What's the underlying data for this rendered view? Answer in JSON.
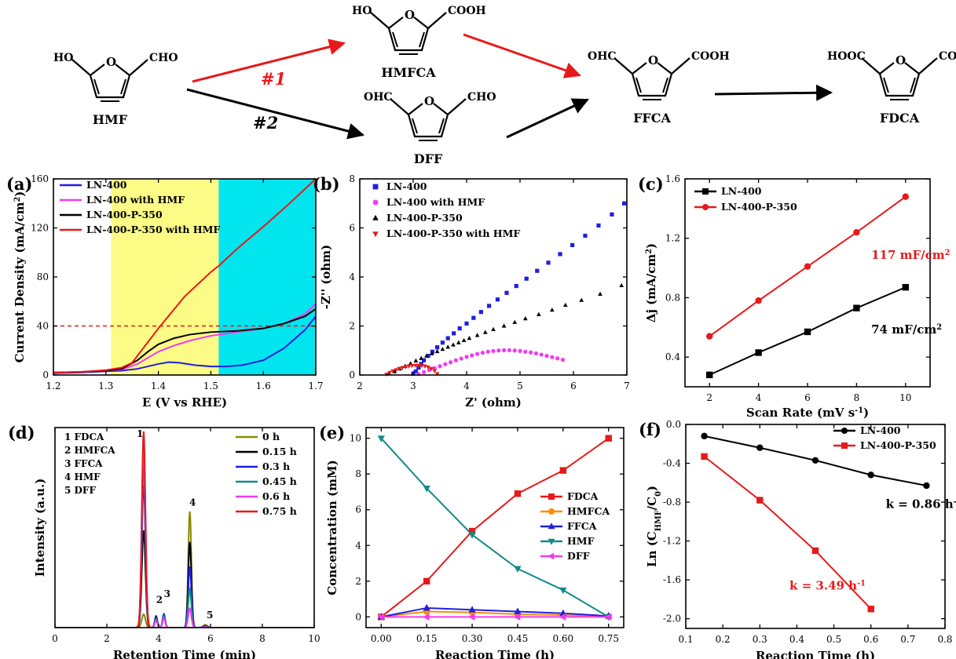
{
  "scheme": {
    "molecules": {
      "hmf": {
        "name": "HMF",
        "left": "HO",
        "right": "CHO"
      },
      "hmfca": {
        "name": "HMFCA",
        "left": "HO",
        "right": "COOH"
      },
      "dff": {
        "name": "DFF",
        "left": "OHC",
        "right": "CHO"
      },
      "ffca": {
        "name": "FFCA",
        "left": "OHC",
        "right": "COOH"
      },
      "fdca": {
        "name": "FDCA",
        "left": "HOOC",
        "right": "COOH"
      }
    },
    "ring_atom": "O",
    "path1_label": "#1",
    "path2_label": "#2",
    "colors": {
      "path1": "#e8191a",
      "path2": "#000000"
    }
  },
  "chart_data": [
    {
      "id": "a",
      "panel_label": "(a)",
      "type": "line",
      "xlabel": "E (V vs RHE)",
      "ylabel": "Current Density (mA/cm²)",
      "xlim": [
        1.2,
        1.7
      ],
      "ylim": [
        0,
        160
      ],
      "xticks": [
        1.2,
        1.3,
        1.4,
        1.5,
        1.6,
        1.7
      ],
      "yticks": [
        0,
        40,
        80,
        120,
        160
      ],
      "xtick_labels": [
        "1.2",
        "1.3",
        "1.4",
        "1.5",
        "1.6",
        "1.7"
      ],
      "ytick_labels": [
        "0",
        "40",
        "80",
        "120",
        "160"
      ],
      "shaded_regions": [
        {
          "x": [
            1.31,
            1.515
          ],
          "color": "#fbfb85"
        },
        {
          "x": [
            1.515,
            1.7
          ],
          "color": "#00e5ee"
        }
      ],
      "reference_line": {
        "y": 40,
        "color": "#e8191a"
      },
      "legend_placement": "top-left",
      "series": [
        {
          "name": "LN-400",
          "color": "#1f1fe0",
          "x": [
            1.2,
            1.25,
            1.3,
            1.33,
            1.36,
            1.38,
            1.4,
            1.42,
            1.44,
            1.47,
            1.5,
            1.53,
            1.56,
            1.6,
            1.64,
            1.68,
            1.7
          ],
          "y": [
            1.5,
            2,
            3,
            3.5,
            5,
            7,
            9,
            10.5,
            10,
            8,
            7,
            7,
            8,
            12,
            22,
            37,
            48
          ]
        },
        {
          "name": "LN-400 with HMF",
          "color": "#f23af2",
          "x": [
            1.2,
            1.25,
            1.3,
            1.33,
            1.36,
            1.38,
            1.4,
            1.43,
            1.46,
            1.5,
            1.55,
            1.6,
            1.64,
            1.68,
            1.7
          ],
          "y": [
            2,
            2.5,
            3.5,
            4.5,
            9,
            14,
            19,
            24,
            28,
            32,
            35,
            38,
            42,
            50,
            58
          ]
        },
        {
          "name": "LN-400-P-350",
          "color": "#000000",
          "x": [
            1.2,
            1.25,
            1.3,
            1.33,
            1.36,
            1.38,
            1.4,
            1.43,
            1.46,
            1.5,
            1.55,
            1.6,
            1.64,
            1.68,
            1.7
          ],
          "y": [
            2,
            2.5,
            3.5,
            5,
            12,
            19,
            25,
            30,
            33,
            35,
            36,
            38,
            42,
            48,
            54
          ]
        },
        {
          "name": "LN-400-P-350 with HMF",
          "color": "#e8191a",
          "x": [
            1.2,
            1.25,
            1.3,
            1.33,
            1.35,
            1.4,
            1.45,
            1.5,
            1.515,
            1.55,
            1.6,
            1.65,
            1.7
          ],
          "y": [
            2,
            2.5,
            4,
            6,
            10,
            38,
            64,
            84,
            89,
            103,
            121,
            140,
            160
          ]
        }
      ]
    },
    {
      "id": "b",
      "panel_label": "(b)",
      "type": "scatter",
      "xlabel": "Z' (ohm)",
      "ylabel": "-Z'' (ohm)",
      "xlim": [
        2,
        7
      ],
      "ylim": [
        0,
        8
      ],
      "xticks": [
        2,
        3,
        4,
        5,
        6,
        7
      ],
      "yticks": [
        0,
        2,
        4,
        6,
        8
      ],
      "xtick_labels": [
        "2",
        "3",
        "4",
        "5",
        "6",
        "7"
      ],
      "ytick_labels": [
        "0",
        "2",
        "4",
        "6",
        "8"
      ],
      "legend_placement": "top-left",
      "series": [
        {
          "name": "LN-400",
          "color": "#1f1fe0",
          "marker": "square",
          "x": [
            3.0,
            3.05,
            3.1,
            3.15,
            3.2,
            3.28,
            3.36,
            3.45,
            3.55,
            3.65,
            3.76,
            3.87,
            4.0,
            4.13,
            4.27,
            4.42,
            4.58,
            4.75,
            4.93,
            5.12,
            5.32,
            5.53,
            5.75,
            5.98,
            6.22,
            6.47,
            6.72,
            6.95
          ],
          "y": [
            0.05,
            0.15,
            0.3,
            0.45,
            0.6,
            0.78,
            0.95,
            1.13,
            1.32,
            1.5,
            1.7,
            1.9,
            2.1,
            2.33,
            2.57,
            2.82,
            3.08,
            3.35,
            3.63,
            3.93,
            4.25,
            4.58,
            4.93,
            5.3,
            5.68,
            6.1,
            6.55,
            7.0
          ]
        },
        {
          "name": "LN-400 with HMF",
          "color": "#f23af2",
          "marker": "circle",
          "x": [
            3.1,
            3.2,
            3.3,
            3.4,
            3.5,
            3.6,
            3.7,
            3.8,
            3.9,
            4.0,
            4.1,
            4.2,
            4.3,
            4.4,
            4.5,
            4.6,
            4.7,
            4.8,
            4.9,
            5.0,
            5.1,
            5.2,
            5.3,
            5.4,
            5.5,
            5.6,
            5.7,
            5.8
          ],
          "y": [
            0.04,
            0.12,
            0.2,
            0.28,
            0.36,
            0.44,
            0.52,
            0.6,
            0.67,
            0.74,
            0.8,
            0.86,
            0.91,
            0.95,
            0.98,
            1.0,
            1.01,
            1.01,
            1.0,
            0.98,
            0.95,
            0.92,
            0.88,
            0.83,
            0.78,
            0.73,
            0.68,
            0.62
          ]
        },
        {
          "name": "LN-400-P-350",
          "color": "#000000",
          "marker": "triangle-up",
          "x": [
            2.55,
            2.65,
            2.75,
            2.85,
            2.95,
            3.05,
            3.15,
            3.25,
            3.35,
            3.45,
            3.55,
            3.65,
            3.75,
            3.85,
            3.95,
            4.05,
            4.2,
            4.35,
            4.5,
            4.7,
            4.9,
            5.1,
            5.35,
            5.6,
            5.85,
            6.15,
            6.5,
            6.9
          ],
          "y": [
            0.05,
            0.14,
            0.25,
            0.36,
            0.47,
            0.58,
            0.68,
            0.78,
            0.87,
            0.96,
            1.05,
            1.14,
            1.23,
            1.32,
            1.41,
            1.5,
            1.62,
            1.74,
            1.86,
            2.0,
            2.15,
            2.3,
            2.47,
            2.65,
            2.85,
            3.05,
            3.3,
            3.65
          ]
        },
        {
          "name": "LN-400-P-350 with HMF",
          "color": "#e8191a",
          "marker": "triangle-down",
          "x": [
            2.5,
            2.56,
            2.62,
            2.68,
            2.74,
            2.8,
            2.86,
            2.92,
            2.98,
            3.04,
            3.1,
            3.16,
            3.22,
            3.28,
            3.34,
            3.4,
            3.45
          ],
          "y": [
            0.03,
            0.1,
            0.16,
            0.21,
            0.26,
            0.3,
            0.33,
            0.36,
            0.38,
            0.39,
            0.39,
            0.38,
            0.36,
            0.32,
            0.26,
            0.17,
            0.05
          ]
        }
      ]
    },
    {
      "id": "c",
      "panel_label": "(c)",
      "type": "line",
      "xlabel": "Scan Rate (mV s⁻¹)",
      "ylabel": "Δj (mA/cm²)",
      "xlim": [
        1,
        11
      ],
      "ylim": [
        0.2,
        1.6
      ],
      "xticks": [
        2,
        4,
        6,
        8,
        10
      ],
      "yticks": [
        0.4,
        0.8,
        1.2,
        1.6
      ],
      "xtick_labels": [
        "2",
        "4",
        "6",
        "8",
        "10"
      ],
      "ytick_labels": [
        "0.4",
        "0.8",
        "1.2",
        "1.6"
      ],
      "legend_placement": "top-left",
      "annotations": [
        {
          "text": "117 mF/cm²",
          "x": 8.6,
          "y": 1.06,
          "color": "#e8191a"
        },
        {
          "text": "74 mF/cm²",
          "x": 8.6,
          "y": 0.56,
          "color": "#000000"
        }
      ],
      "series": [
        {
          "name": "LN-400",
          "color": "#000000",
          "marker": "square",
          "x": [
            2,
            4,
            6,
            8,
            10
          ],
          "y": [
            0.28,
            0.43,
            0.57,
            0.73,
            0.87
          ]
        },
        {
          "name": "LN-400-P-350",
          "color": "#e8191a",
          "marker": "circle",
          "x": [
            2,
            4,
            6,
            8,
            10
          ],
          "y": [
            0.54,
            0.78,
            1.01,
            1.24,
            1.48
          ]
        }
      ]
    },
    {
      "id": "d",
      "panel_label": "(d)",
      "type": "line",
      "xlabel": "Retention Time (min)",
      "ylabel": "Intensity (a.u.)",
      "xlim": [
        0,
        10
      ],
      "ylim": [
        0,
        1.05
      ],
      "xticks": [
        0,
        2,
        4,
        6,
        8,
        10
      ],
      "yticks": [],
      "xtick_labels": [
        "0",
        "2",
        "4",
        "6",
        "8",
        "10"
      ],
      "ytick_labels": [],
      "legend_placement": "top-right",
      "peak_key": [
        "1 FDCA",
        "2 HMFCA",
        "3 FFCA",
        "4 HMF",
        "5 DFF"
      ],
      "peak_labels": [
        {
          "text": "1",
          "x": 3.15,
          "y": 1.0
        },
        {
          "text": "2",
          "x": 3.9,
          "y": 0.13
        },
        {
          "text": "3",
          "x": 4.2,
          "y": 0.16
        },
        {
          "text": "4",
          "x": 5.18,
          "y": 0.64
        },
        {
          "text": "5",
          "x": 5.85,
          "y": 0.05
        }
      ],
      "peak_centers": [
        3.42,
        3.9,
        4.2,
        5.2,
        5.8
      ],
      "series": [
        {
          "name": "0 h",
          "color": "#8b8b00",
          "peaks": [
            0.07,
            0.0,
            0.0,
            0.61,
            0.015
          ]
        },
        {
          "name": "0.15 h",
          "color": "#000000",
          "peaks": [
            0.51,
            0.06,
            0.07,
            0.45,
            0.01
          ]
        },
        {
          "name": "0.3 h",
          "color": "#1f1fe0",
          "peaks": [
            0.75,
            0.055,
            0.07,
            0.32,
            0.008
          ]
        },
        {
          "name": "0.45 h",
          "color": "#138a8a",
          "peaks": [
            0.85,
            0.045,
            0.06,
            0.2,
            0.006
          ]
        },
        {
          "name": "0.6 h",
          "color": "#f23af2",
          "peaks": [
            0.95,
            0.035,
            0.05,
            0.1,
            0.004
          ]
        },
        {
          "name": "0.75 h",
          "color": "#e8191a",
          "peaks": [
            1.03,
            0.0,
            0.0,
            0.0,
            0.0
          ]
        }
      ]
    },
    {
      "id": "e",
      "panel_label": "(e)",
      "type": "line",
      "xlabel": "Reaction Time (h)",
      "ylabel": "Concentration (mM)",
      "xlim": [
        -0.05,
        0.8
      ],
      "ylim": [
        -0.6,
        10.6
      ],
      "xticks": [
        0,
        0.15,
        0.3,
        0.45,
        0.6,
        0.75
      ],
      "yticks": [
        0,
        2,
        4,
        6,
        8,
        10
      ],
      "xtick_labels": [
        "0.00",
        "0.15",
        "0.30",
        "0.45",
        "0.60",
        "0.75"
      ],
      "ytick_labels": [
        "0",
        "2",
        "4",
        "6",
        "8",
        "10"
      ],
      "legend_placement": "center-right",
      "series": [
        {
          "name": "FDCA",
          "color": "#e8191a",
          "marker": "square",
          "x": [
            0,
            0.15,
            0.3,
            0.45,
            0.6,
            0.75
          ],
          "y": [
            0,
            2.0,
            4.8,
            6.9,
            8.2,
            10.0
          ]
        },
        {
          "name": "HMFCA",
          "color": "#ff8c00",
          "marker": "circle",
          "x": [
            0,
            0.15,
            0.3,
            0.45,
            0.6,
            0.75
          ],
          "y": [
            0,
            0.3,
            0.25,
            0.15,
            0.1,
            0.02
          ]
        },
        {
          "name": "FFCA",
          "color": "#1f1fe0",
          "marker": "triangle-up",
          "x": [
            0,
            0.15,
            0.3,
            0.45,
            0.6,
            0.75
          ],
          "y": [
            0,
            0.5,
            0.4,
            0.3,
            0.2,
            0.05
          ]
        },
        {
          "name": "HMF",
          "color": "#138a8a",
          "marker": "triangle-down",
          "x": [
            0,
            0.15,
            0.3,
            0.45,
            0.6,
            0.75
          ],
          "y": [
            10.0,
            7.2,
            4.6,
            2.7,
            1.5,
            0.0
          ]
        },
        {
          "name": "DFF",
          "color": "#f23af2",
          "marker": "triangle-left",
          "x": [
            0,
            0.15,
            0.3,
            0.45,
            0.6,
            0.75
          ],
          "y": [
            0,
            0,
            0,
            0,
            0,
            0
          ]
        }
      ]
    },
    {
      "id": "f",
      "panel_label": "(f)",
      "type": "line",
      "xlabel": "Reaction Time (h)",
      "ylabel": "Ln (C_HMF/C_0)",
      "xlim": [
        0.1,
        0.8
      ],
      "ylim": [
        -2.1,
        0.0
      ],
      "xticks": [
        0.1,
        0.2,
        0.3,
        0.4,
        0.5,
        0.6,
        0.7,
        0.8
      ],
      "yticks": [
        0.0,
        -0.4,
        -0.8,
        -1.2,
        -1.6,
        -2.0
      ],
      "xtick_labels": [
        "0.1",
        "0.2",
        "0.3",
        "0.4",
        "0.5",
        "0.6",
        "0.7",
        "0.8"
      ],
      "ytick_labels": [
        "0.0",
        "-0.4",
        "-0.8",
        "-1.2",
        "-1.6",
        "-2.0"
      ],
      "legend_placement": "top-right",
      "annotations": [
        {
          "text": "k = 0.86 h⁻¹",
          "x": 0.64,
          "y": -0.86,
          "color": "#000000"
        },
        {
          "text": "k = 3.49 h⁻¹",
          "x": 0.38,
          "y": -1.7,
          "color": "#e8191a"
        }
      ],
      "series": [
        {
          "name": "LN-400",
          "color": "#000000",
          "marker": "circle",
          "x": [
            0.15,
            0.3,
            0.45,
            0.6,
            0.75
          ],
          "y": [
            -0.12,
            -0.24,
            -0.37,
            -0.52,
            -0.63
          ]
        },
        {
          "name": "LN-400-P-350",
          "color": "#e8191a",
          "marker": "square",
          "x": [
            0.15,
            0.3,
            0.45,
            0.6
          ],
          "y": [
            -0.33,
            -0.78,
            -1.3,
            -1.9
          ]
        }
      ]
    }
  ]
}
